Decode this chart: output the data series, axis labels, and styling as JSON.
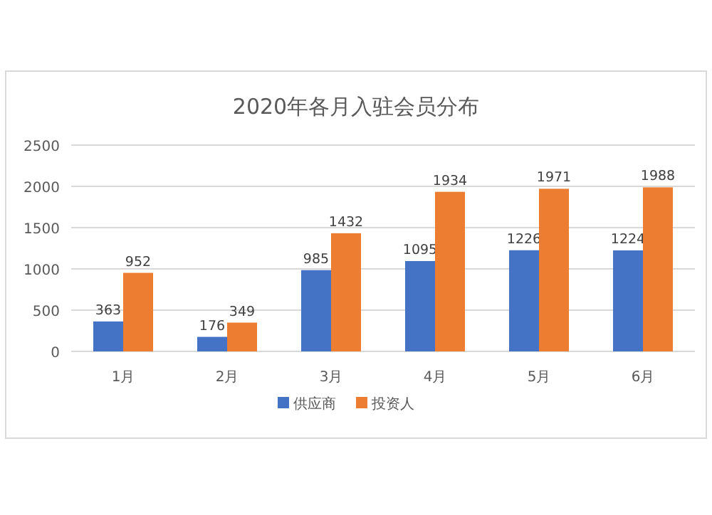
{
  "chart_data": {
    "type": "bar",
    "title": "2020年各月入驻会员分布",
    "categories": [
      "1月",
      "2月",
      "3月",
      "4月",
      "5月",
      "6月"
    ],
    "series": [
      {
        "name": "供应商",
        "color": "#4472c4",
        "values": [
          363,
          176,
          985,
          1095,
          1226,
          1224
        ]
      },
      {
        "name": "投资人",
        "color": "#ed7d31",
        "values": [
          952,
          349,
          1432,
          1934,
          1971,
          1988
        ]
      }
    ],
    "ylim": [
      0,
      2500
    ],
    "yticks": [
      0,
      500,
      1000,
      1500,
      2000,
      2500
    ],
    "grid": "y",
    "legend": "bottom",
    "data_labels": true
  }
}
